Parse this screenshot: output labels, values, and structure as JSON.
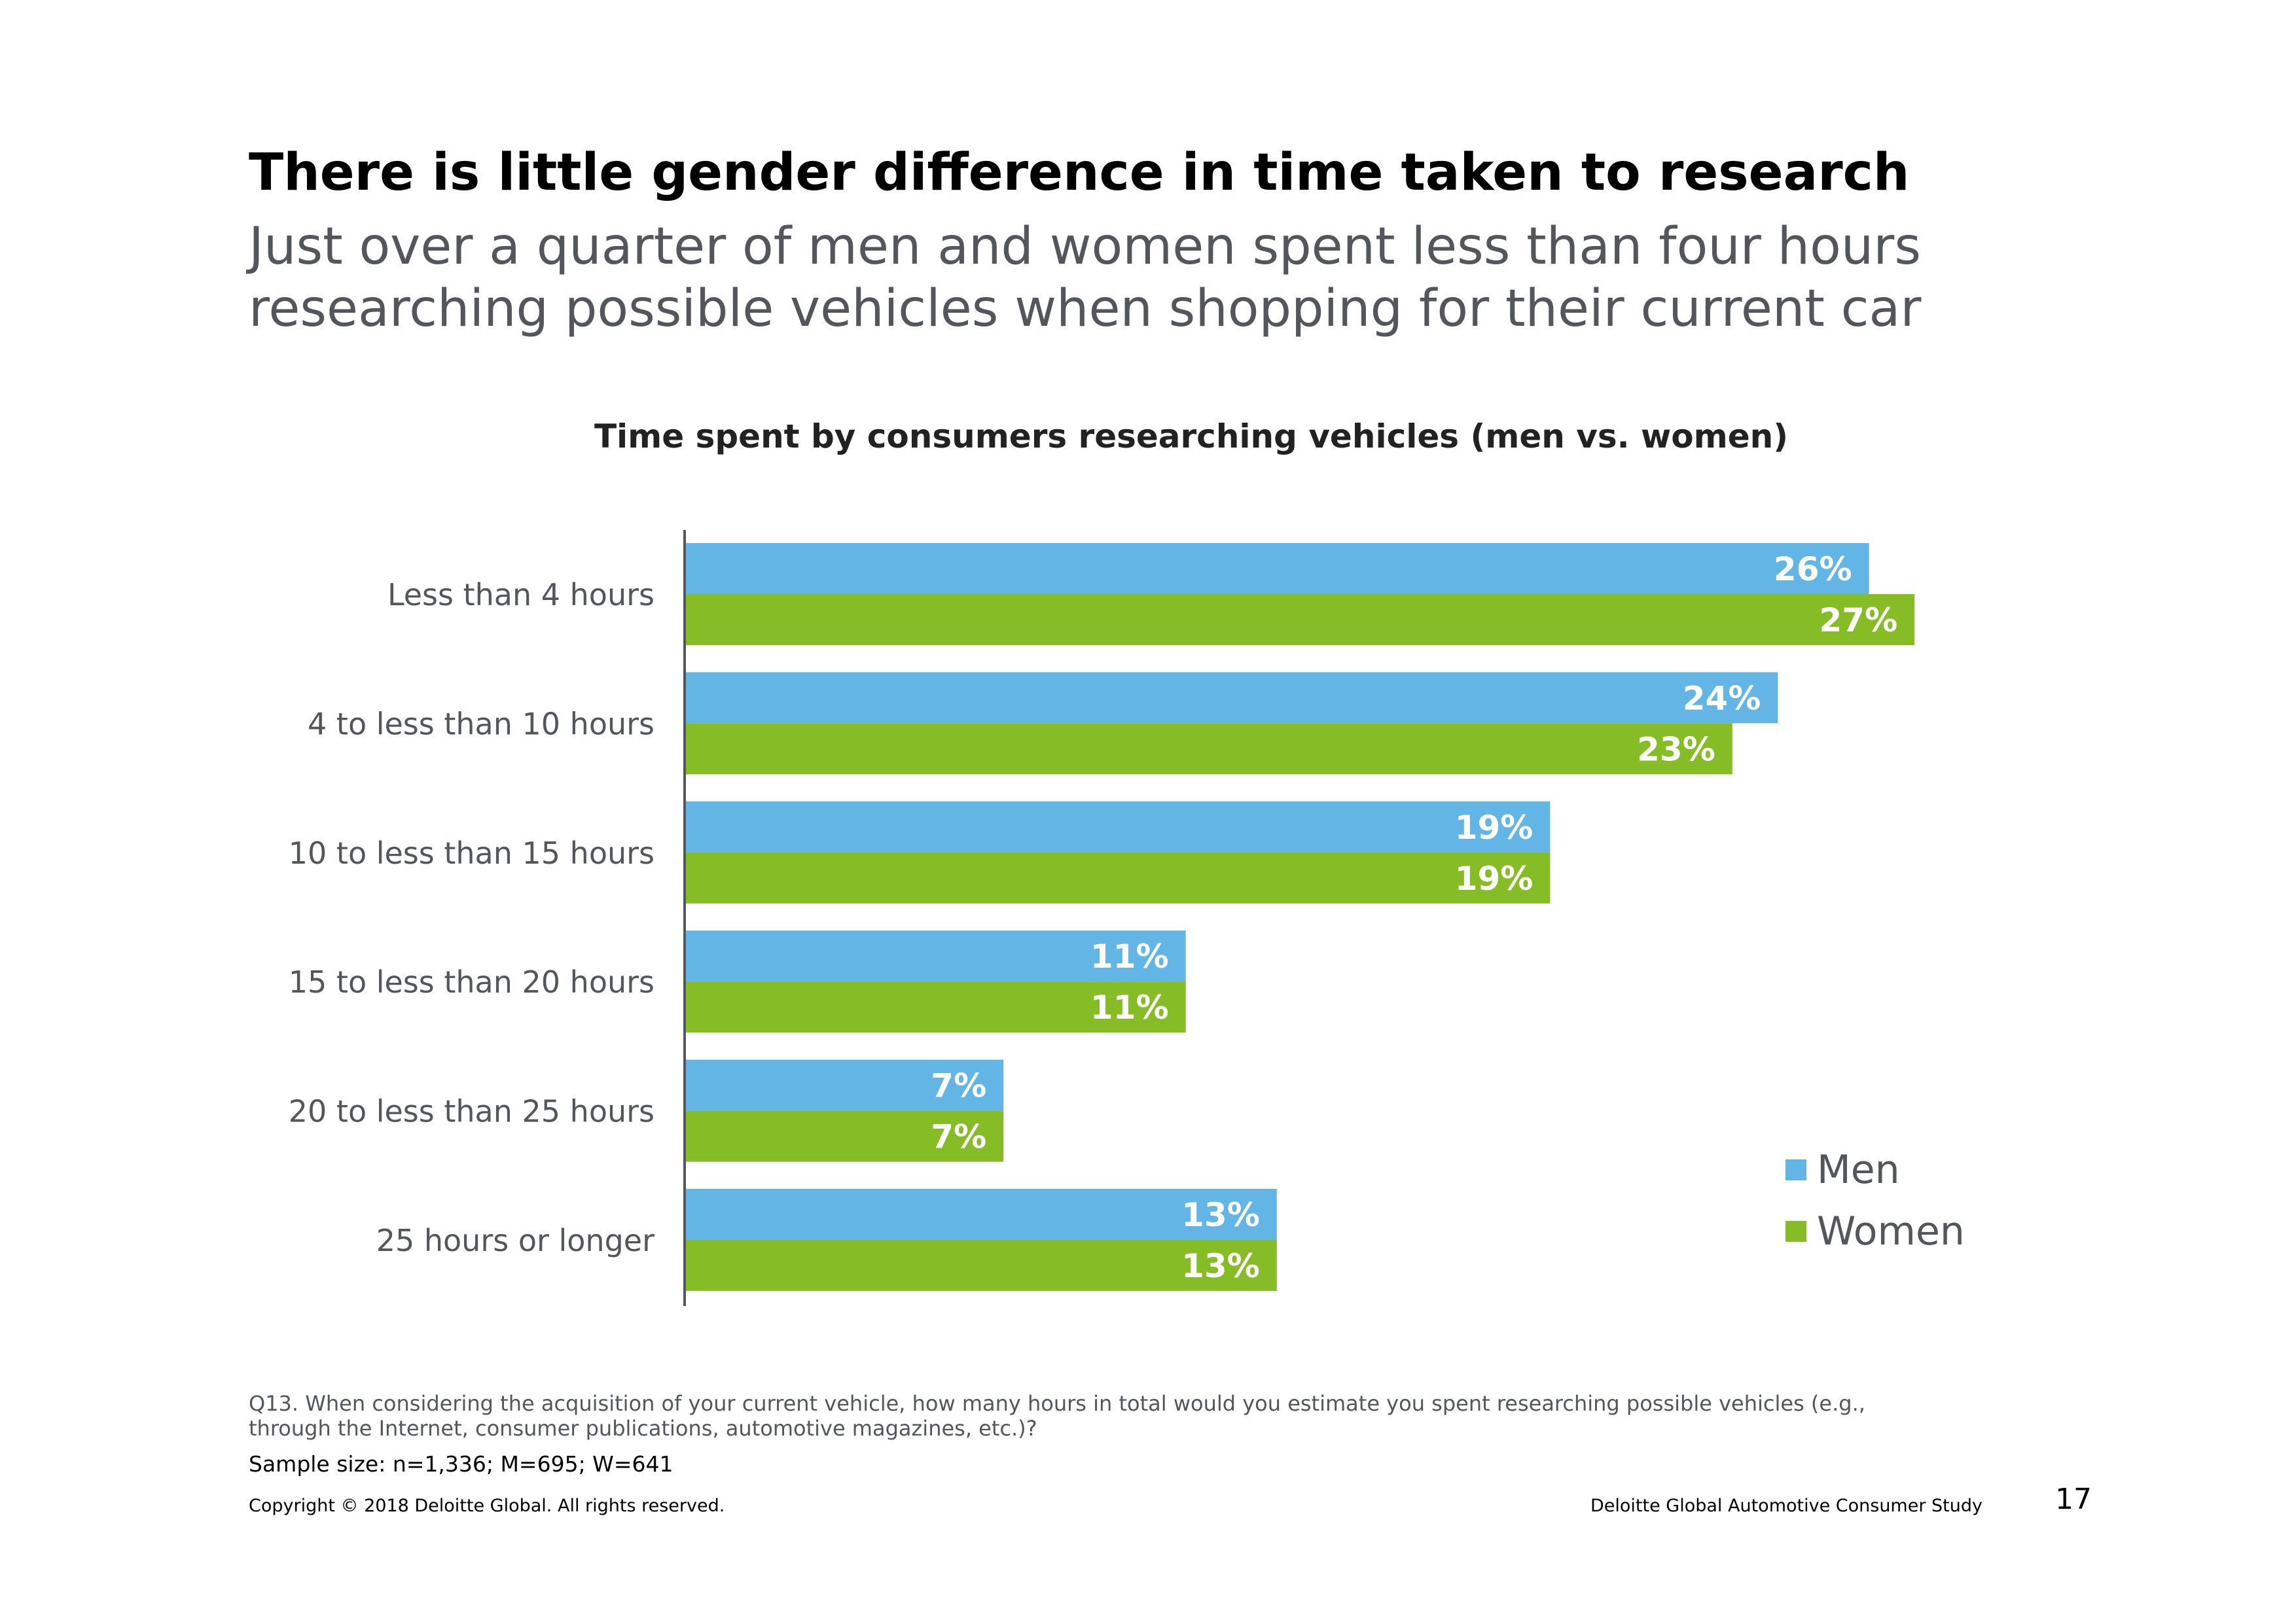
{
  "title": "There is little gender difference in time taken to research",
  "subtitle": "Just over a quarter of men and women spent less than four hours researching possible vehicles when shopping for their current car",
  "colors": {
    "men": "#62b5e5",
    "women": "#86bc25",
    "axis": "#53565a"
  },
  "chart_data": {
    "type": "bar",
    "orientation": "horizontal",
    "title": "Time spent by consumers researching vehicles (men vs. women)",
    "categories": [
      "Less than 4 hours",
      "4 to less than 10 hours",
      "10 to less than 15 hours",
      "15 to less than 20 hours",
      "20 to less than 25 hours",
      "25 hours or longer"
    ],
    "series": [
      {
        "name": "Men",
        "values": [
          26,
          24,
          19,
          11,
          7,
          13
        ],
        "labels": [
          "26%",
          "24%",
          "19%",
          "11%",
          "7%",
          "13%"
        ]
      },
      {
        "name": "Women",
        "values": [
          27,
          23,
          19,
          11,
          7,
          13
        ],
        "labels": [
          "27%",
          "23%",
          "19%",
          "11%",
          "7%",
          "13%"
        ]
      }
    ],
    "value_unit": "%",
    "xlim": [
      0,
      27
    ],
    "grid": false,
    "legend_position": "bottom-right"
  },
  "footnote": "Q13. When considering the acquisition of your current vehicle, how many hours in total would you estimate you spent researching possible vehicles (e.g., through the Internet, consumer publications, automotive magazines, etc.)?",
  "sample_size": "Sample size: n=1,336; M=695; W=641",
  "footer": {
    "copyright": "Copyright © 2018 Deloitte Global. All rights reserved.",
    "study_name": "Deloitte Global Automotive Consumer Study",
    "page_number": "17"
  }
}
